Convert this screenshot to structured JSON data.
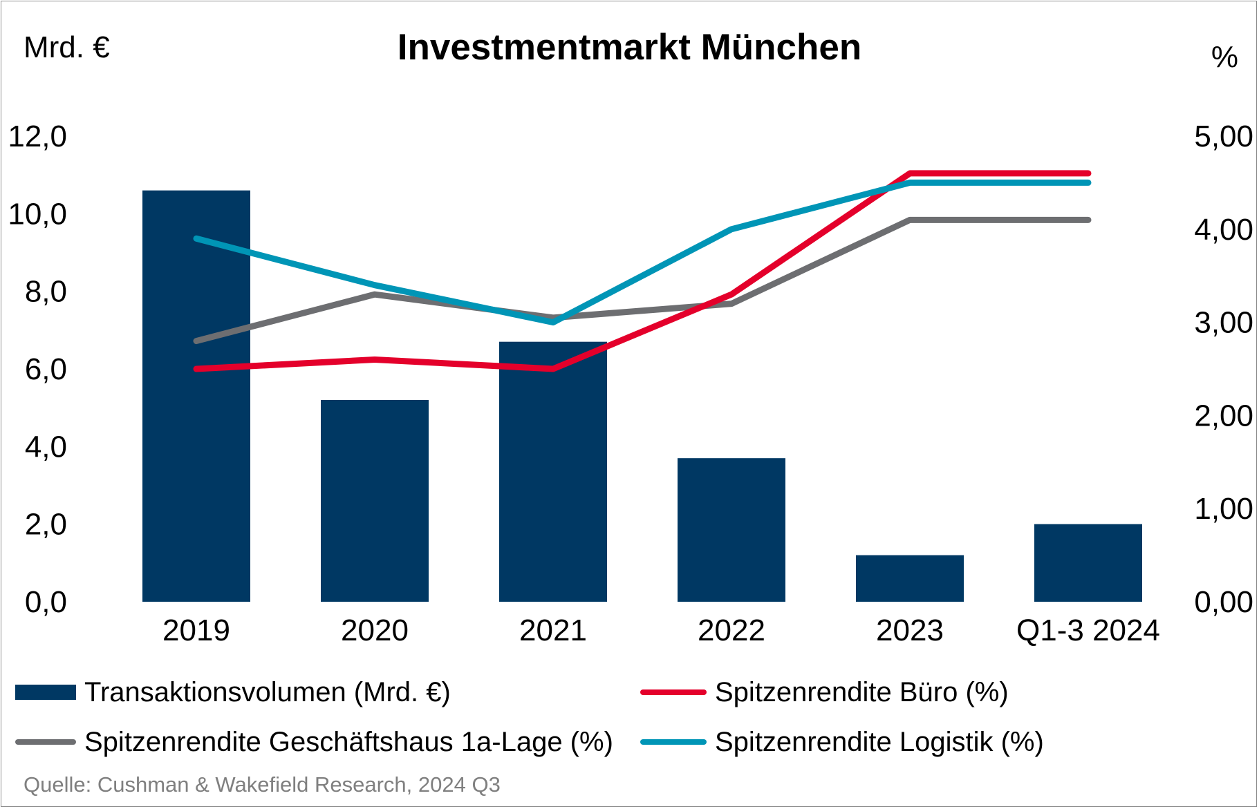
{
  "header": {
    "title": "Investmentmarkt München",
    "left_unit": "Mrd. €",
    "right_unit": "%"
  },
  "source": "Quelle: Cushman & Wakefield Research, 2024 Q3",
  "colors": {
    "volume": "#003863",
    "office": "#e4002b",
    "retail": "#6d6e71",
    "logistics": "#0095b6"
  },
  "chart_data": {
    "type": "bar",
    "categories": [
      "2019",
      "2020",
      "2021",
      "2022",
      "2023",
      "Q1-3 2024"
    ],
    "y_left": {
      "min": 0,
      "max": 12,
      "step": 2,
      "tick_labels": [
        "0,0",
        "2,0",
        "4,0",
        "6,0",
        "8,0",
        "10,0",
        "12,0"
      ]
    },
    "y_right": {
      "min": 0,
      "max": 5,
      "step": 1,
      "tick_labels": [
        "0,00",
        "1,00",
        "2,00",
        "3,00",
        "4,00",
        "5,00"
      ]
    },
    "grid": false,
    "legend_position": "bottom",
    "series": [
      {
        "name": "Transaktionsvolumen (Mrd. €)",
        "type": "bar",
        "axis": "left",
        "color_key": "volume",
        "values": [
          10.6,
          5.2,
          6.7,
          3.7,
          1.2,
          2.0
        ]
      },
      {
        "name": "Spitzenrendite Büro (%)",
        "type": "line",
        "axis": "right",
        "color_key": "office",
        "values": [
          2.5,
          2.6,
          2.5,
          3.3,
          4.6,
          4.6
        ]
      },
      {
        "name": "Spitzenrendite Geschäftshaus 1a-Lage (%)",
        "type": "line",
        "axis": "right",
        "color_key": "retail",
        "values": [
          2.8,
          3.3,
          3.05,
          3.2,
          4.1,
          4.1
        ]
      },
      {
        "name": "Spitzenrendite Logistik (%)",
        "type": "line",
        "axis": "right",
        "color_key": "logistics",
        "values": [
          3.9,
          3.4,
          3.0,
          4.0,
          4.5,
          4.5
        ]
      }
    ]
  }
}
